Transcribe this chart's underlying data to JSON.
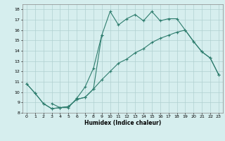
{
  "xlabel": "Humidex (Indice chaleur)",
  "background_color": "#d6eeee",
  "grid_color": "#b0d0d0",
  "line_color": "#2e7d6e",
  "xlim": [
    -0.5,
    23.5
  ],
  "ylim": [
    8.0,
    18.5
  ],
  "yticks": [
    8,
    9,
    10,
    11,
    12,
    13,
    14,
    15,
    16,
    17,
    18
  ],
  "xticks": [
    0,
    1,
    2,
    3,
    4,
    5,
    6,
    7,
    8,
    9,
    10,
    11,
    12,
    13,
    14,
    15,
    16,
    17,
    18,
    19,
    20,
    21,
    22,
    23
  ],
  "line1_x": [
    0,
    1,
    2,
    3,
    4,
    5,
    6,
    7,
    8,
    9,
    10,
    11,
    12,
    13,
    14,
    15,
    16,
    17,
    18,
    19,
    20,
    21,
    22,
    23
  ],
  "line1_y": [
    10.8,
    9.9,
    8.9,
    8.4,
    8.5,
    8.6,
    9.3,
    9.5,
    10.3,
    11.2,
    12.0,
    12.8,
    13.2,
    13.8,
    14.2,
    14.8,
    15.2,
    15.5,
    15.8,
    16.0,
    14.9,
    13.9,
    13.3,
    11.7
  ],
  "line2_x": [
    0,
    1,
    2,
    3,
    4,
    5,
    6,
    7,
    8,
    9,
    10,
    11,
    12,
    13,
    14,
    15,
    16,
    17,
    18,
    19,
    20,
    21,
    22,
    23
  ],
  "line2_y": [
    10.8,
    9.9,
    8.9,
    8.4,
    8.5,
    8.6,
    9.3,
    9.5,
    10.3,
    15.5,
    17.8,
    16.5,
    17.1,
    17.5,
    16.9,
    17.8,
    16.9,
    17.1,
    17.1,
    16.0,
    14.9,
    13.9,
    13.3,
    11.7
  ],
  "line3_x": [
    3,
    4,
    5,
    6,
    7,
    8,
    9
  ],
  "line3_y": [
    8.9,
    8.5,
    8.5,
    9.4,
    10.5,
    12.3,
    15.5
  ]
}
